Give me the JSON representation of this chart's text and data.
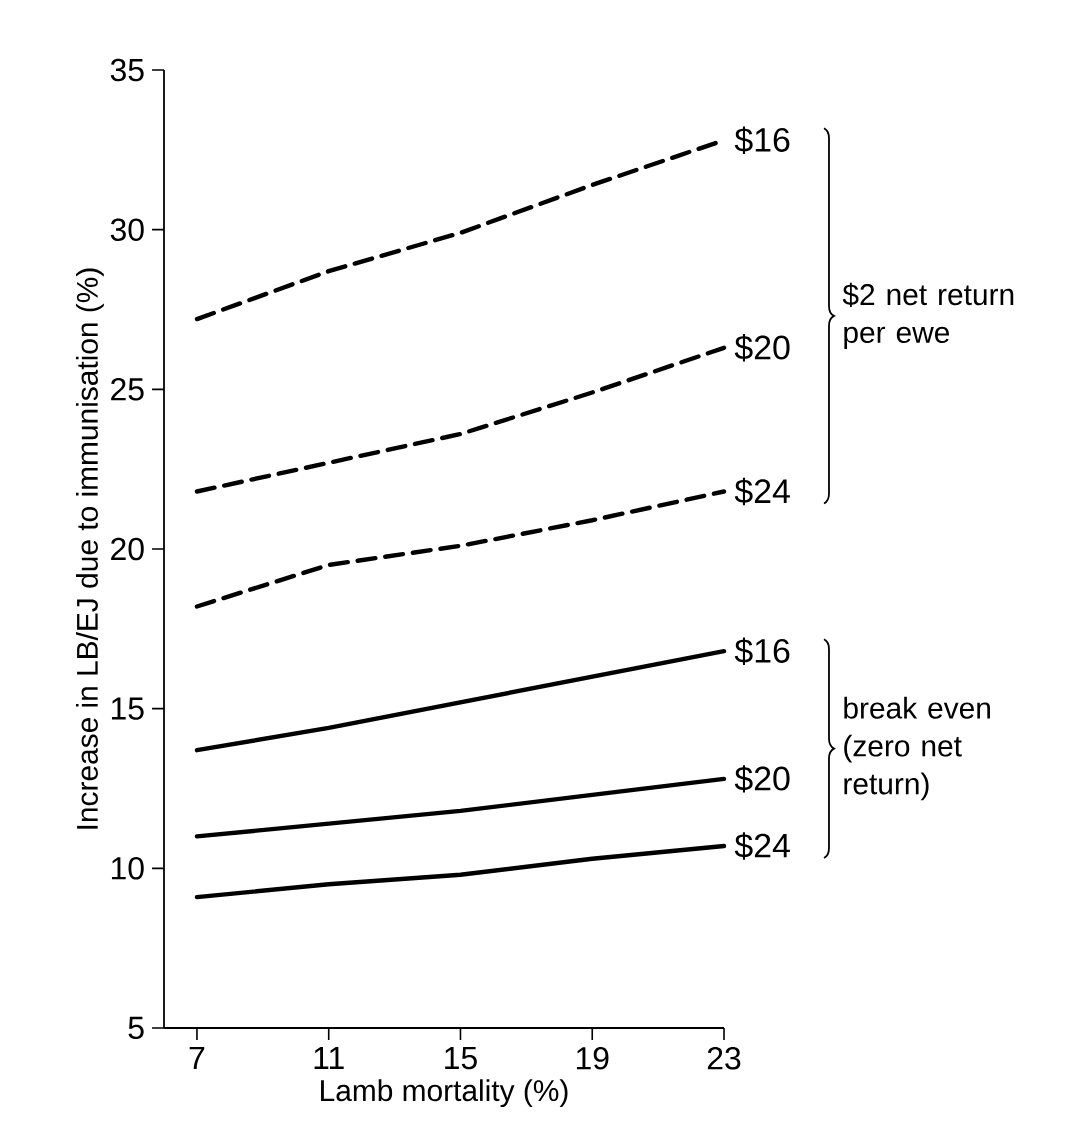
{
  "chart_data": {
    "type": "line",
    "xlabel": "Lamb mortality (%)",
    "ylabel": "Increase in LB/EJ due to immunisation (%)",
    "x": [
      7,
      11,
      15,
      19,
      23
    ],
    "xlim": [
      6,
      23
    ],
    "xticks": [
      7,
      11,
      15,
      19,
      23
    ],
    "ylim": [
      5,
      35
    ],
    "yticks": [
      5,
      10,
      15,
      20,
      25,
      30,
      35
    ],
    "grid": false,
    "marker": "none",
    "series": [
      {
        "name": "$16",
        "color": "#000000",
        "line_style": "dashed",
        "values": [
          27.2,
          28.7,
          29.9,
          31.4,
          32.8
        ]
      },
      {
        "name": "$20",
        "color": "#000000",
        "line_style": "dashed",
        "values": [
          21.8,
          22.7,
          23.6,
          24.9,
          26.3
        ]
      },
      {
        "name": "$24",
        "color": "#000000",
        "line_style": "dashed",
        "values": [
          18.2,
          19.5,
          20.1,
          20.9,
          21.8
        ]
      },
      {
        "name": "$16",
        "color": "#000000",
        "line_style": "solid",
        "values": [
          13.7,
          14.4,
          15.2,
          16.0,
          16.8
        ]
      },
      {
        "name": "$20",
        "color": "#000000",
        "line_style": "solid",
        "values": [
          11.0,
          11.4,
          11.8,
          12.3,
          12.8
        ]
      },
      {
        "name": "$24",
        "color": "#000000",
        "line_style": "solid",
        "values": [
          9.1,
          9.5,
          9.8,
          10.3,
          10.7
        ]
      }
    ],
    "annotations": [
      "$2 net return per ewe",
      "break even (zero net return)"
    ]
  }
}
